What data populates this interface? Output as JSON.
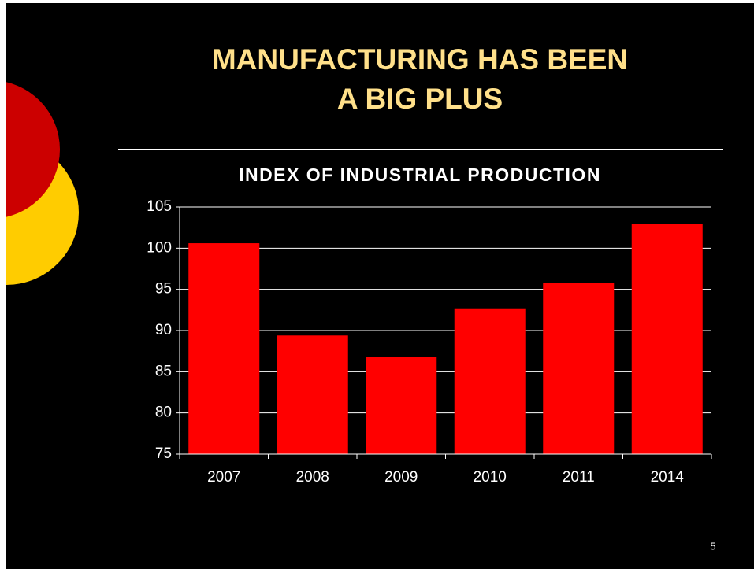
{
  "slide": {
    "title_lines": [
      "MANUFACTURING HAS BEEN",
      "A BIG PLUS"
    ],
    "page_number": "5"
  },
  "chart_data": {
    "type": "bar",
    "title": "INDEX OF INDUSTRIAL PRODUCTION",
    "categories": [
      "2007",
      "2008",
      "2009",
      "2010",
      "2011",
      "2014"
    ],
    "values": [
      100.6,
      89.4,
      86.8,
      92.7,
      95.8,
      102.9
    ],
    "color": "#ff0000",
    "ylim": [
      75,
      105
    ],
    "yticks": [
      75,
      80,
      85,
      90,
      95,
      100,
      105
    ],
    "grid": true
  }
}
